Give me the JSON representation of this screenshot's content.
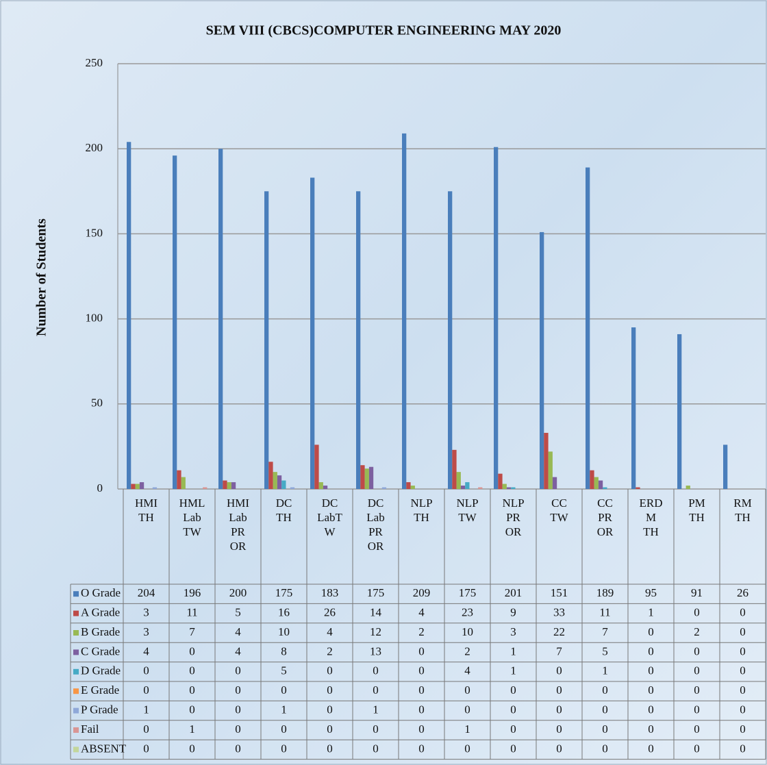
{
  "chart_data": {
    "type": "bar",
    "title": "SEM VIII  (CBCS)COMPUTER  ENGINEERING MAY 2020",
    "y_label": "Number of Students",
    "categories": [
      "HMI\nTH",
      "HML\nLab\nTW",
      "HMI\nLab\nPR\nOR",
      "DC\nTH",
      "DC\nLabT\nW",
      "DC\nLab\nPR\nOR",
      "NLP\nTH",
      "NLP\nTW",
      "NLP\nPR\nOR",
      "CC\nTW",
      "CC\nPR\nOR",
      "ERD\nM\nTH",
      "PM\nTH",
      "RM\nTH"
    ],
    "ylim": [
      0,
      250
    ],
    "yticks": [
      0,
      50,
      100,
      150,
      200,
      250
    ],
    "grid": true,
    "series": [
      {
        "name": "O Grade",
        "color": "#4a7ebb",
        "values": [
          204,
          196,
          200,
          175,
          183,
          175,
          209,
          175,
          201,
          151,
          189,
          95,
          91,
          26
        ]
      },
      {
        "name": "A Grade",
        "color": "#be4b48",
        "values": [
          3,
          11,
          5,
          16,
          26,
          14,
          4,
          23,
          9,
          33,
          11,
          1,
          0,
          0
        ]
      },
      {
        "name": "B Grade",
        "color": "#98b954",
        "values": [
          3,
          7,
          4,
          10,
          4,
          12,
          2,
          10,
          3,
          22,
          7,
          0,
          2,
          0
        ]
      },
      {
        "name": "C Grade",
        "color": "#7d60a0",
        "values": [
          4,
          0,
          4,
          8,
          2,
          13,
          0,
          2,
          1,
          7,
          5,
          0,
          0,
          0
        ]
      },
      {
        "name": "D Grade",
        "color": "#46aac5",
        "values": [
          0,
          0,
          0,
          5,
          0,
          0,
          0,
          4,
          1,
          0,
          1,
          0,
          0,
          0
        ]
      },
      {
        "name": "E Grade",
        "color": "#f79646",
        "values": [
          0,
          0,
          0,
          0,
          0,
          0,
          0,
          0,
          0,
          0,
          0,
          0,
          0,
          0
        ]
      },
      {
        "name": "P Grade",
        "color": "#8fa8d8",
        "values": [
          1,
          0,
          0,
          1,
          0,
          1,
          0,
          0,
          0,
          0,
          0,
          0,
          0,
          0
        ]
      },
      {
        "name": "Fail",
        "color": "#d99694",
        "values": [
          0,
          1,
          0,
          0,
          0,
          0,
          0,
          1,
          0,
          0,
          0,
          0,
          0,
          0
        ]
      },
      {
        "name": "ABSENT",
        "color": "#c3d69b",
        "values": [
          0,
          0,
          0,
          0,
          0,
          0,
          0,
          0,
          0,
          0,
          0,
          0,
          0,
          0
        ]
      }
    ]
  }
}
